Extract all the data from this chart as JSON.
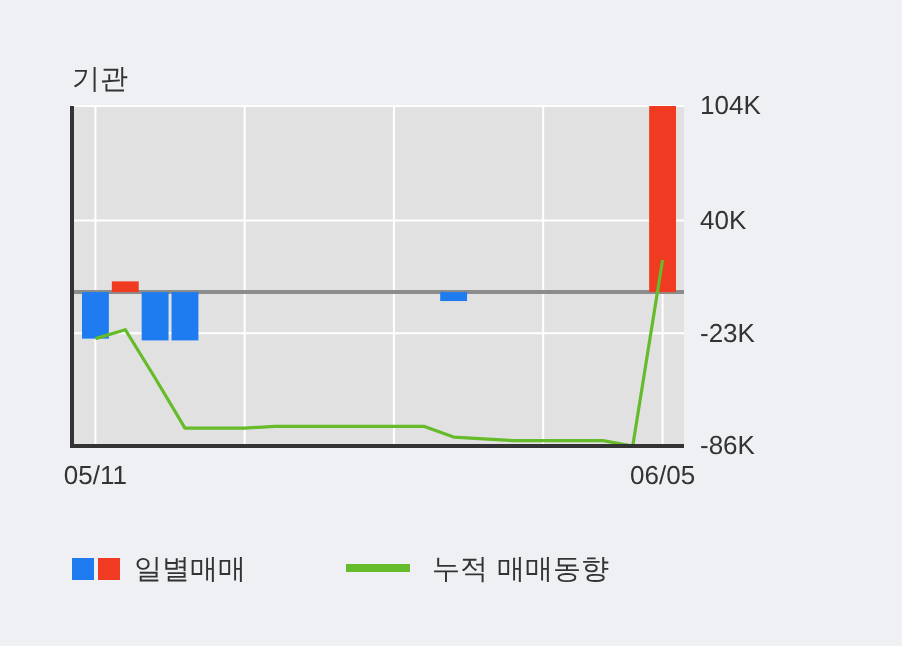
{
  "chart_data": {
    "type": "bar",
    "title": "기관",
    "categories": [
      "05/11",
      null,
      null,
      null,
      null,
      null,
      null,
      null,
      null,
      null,
      null,
      null,
      null,
      null,
      null,
      null,
      null,
      null,
      null,
      "06/05"
    ],
    "series": [
      {
        "name": "일별매매",
        "colors": [
          "#1f7cf0",
          "#f03a22",
          "#1f7cf0",
          "#1f7cf0",
          "#1f7cf0",
          "#1f7cf0",
          "#1f7cf0",
          "#1f7cf0",
          "#1f7cf0",
          "#1f7cf0",
          "#1f7cf0",
          "#1f7cf0",
          "#1f7cf0",
          "#1f7cf0",
          "#1f7cf0",
          "#1f7cf0",
          "#1f7cf0",
          "#1f7cf0",
          "#1f7cf0",
          "#f03a22"
        ],
        "values": [
          -26000,
          6000,
          -27000,
          -27000,
          0,
          0,
          0,
          0,
          0,
          0,
          0,
          0,
          -5000,
          0,
          0,
          0,
          0,
          0,
          0,
          104000
        ]
      },
      {
        "name": "누적 매매동향",
        "type": "line",
        "color": "#66bb2a",
        "values": [
          -26000,
          -21000,
          -48000,
          -76000,
          -76000,
          -76000,
          -75000,
          -75000,
          -75000,
          -75000,
          -75000,
          -75000,
          -81000,
          -82000,
          -83000,
          -83000,
          -83000,
          -83000,
          -86000,
          18000
        ]
      }
    ],
    "ylim": [
      -86000,
      104000
    ],
    "yticks": [
      {
        "value": 104000,
        "label": "104K"
      },
      {
        "value": 40000,
        "label": "40K"
      },
      {
        "value": -23000,
        "label": "-23K"
      },
      {
        "value": -86000,
        "label": "-86K"
      }
    ],
    "ref_lines": [
      {
        "axis": "y",
        "value": 0,
        "color": "#8c8c8c"
      }
    ],
    "grid": true,
    "legend": "bottom"
  }
}
